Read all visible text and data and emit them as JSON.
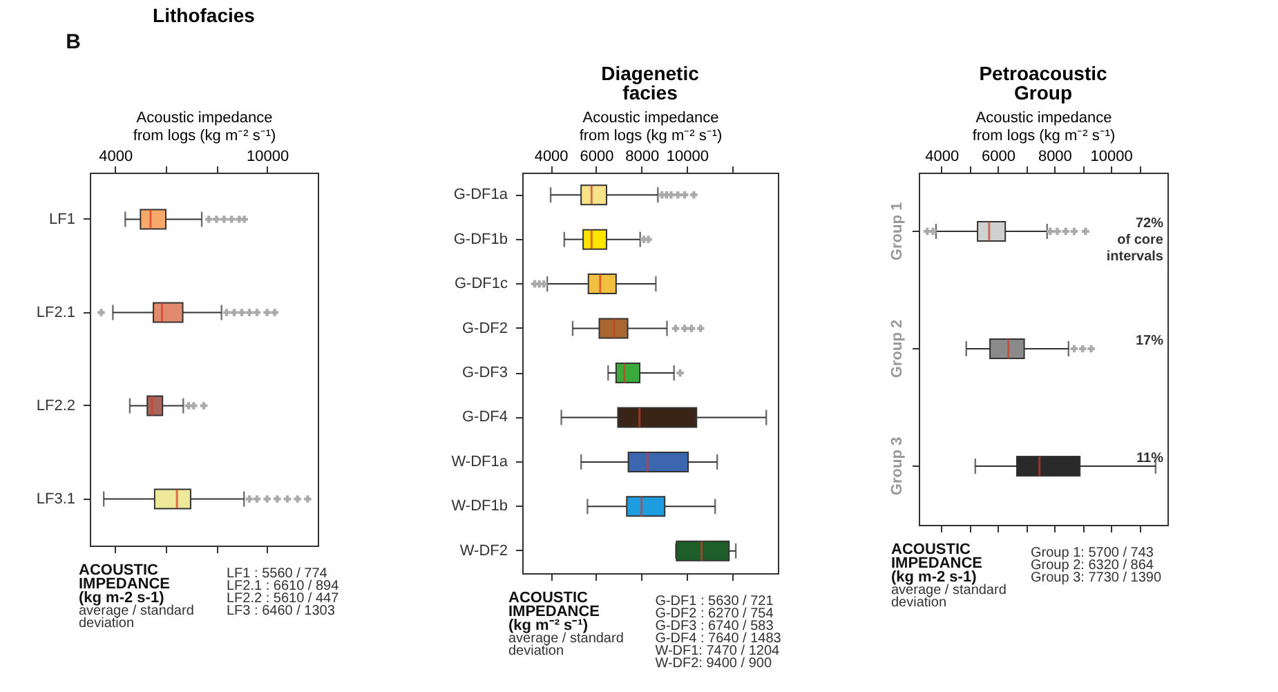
{
  "chart_data": [
    {
      "type": "box",
      "orientation": "horizontal",
      "title": "Lithofacies",
      "xlabel": "Acoustic impedance\nfrom logs (kg m⁻² s⁻¹)",
      "categories": [
        "LF1",
        "LF2.1",
        "LF2.2",
        "LF3.1"
      ],
      "colors": [
        "#f7a96b",
        "#e08a6e",
        "#a9655a",
        "#eee89a"
      ],
      "boxes": [
        {
          "low": 4400,
          "q1": 5000,
          "median": 5400,
          "q3": 6000,
          "high": 7420,
          "outliers": [
            7700,
            8000,
            8300,
            8600,
            8900,
            9100
          ]
        },
        {
          "low": 3910,
          "q1": 5510,
          "median": 5850,
          "q3": 6670,
          "high": 8200,
          "outliers": [
            3450,
            8400,
            8700,
            9000,
            9300,
            9600,
            10000,
            10300
          ]
        },
        {
          "low": 4580,
          "q1": 5270,
          "median": 5450,
          "q3": 5870,
          "high": 6690,
          "outliers": [
            6900,
            7100,
            7500
          ]
        },
        {
          "low": 3550,
          "q1": 5560,
          "median": 6440,
          "q3": 6980,
          "high": 9090,
          "outliers": [
            9300,
            9600,
            10000,
            10400,
            10800,
            11200,
            11600
          ]
        }
      ],
      "xlim": [
        3000,
        12000
      ],
      "xticks": [
        4000,
        {
          "value": 6000,
          "label": null
        },
        {
          "value": 8000,
          "label": null
        },
        10000
      ],
      "annotations": [
        "B",
        "ACOUSTIC\nIMPEDANCE\n(kg m-2 s-1)",
        "average / standard\ndeviation",
        "LF1 :   5560  /  774\nLF2.1 : 6610  /  894\nLF2.2 : 5610  /  447\nLF3 :   6460  /  1303"
      ]
    },
    {
      "type": "box",
      "orientation": "horizontal",
      "title": "Diagenetic\nfacies",
      "xlabel": "Acoustic impedance\nfrom logs (kg m⁻² s⁻¹)",
      "categories": [
        "G-DF1a",
        "G-DF1b",
        "G-DF1c",
        "G-DF2",
        "G-DF3",
        "G-DF4",
        "W-DF1a",
        "W-DF1b",
        "W-DF2"
      ],
      "colors": [
        "#f6e38a",
        "#ffe600",
        "#f2c040",
        "#a9662e",
        "#3aaa3a",
        "#3a2418",
        "#3d66b0",
        "#1e9ee0",
        "#1e5e2a"
      ],
      "boxes": [
        {
          "low": 4000,
          "q1": 5340,
          "median": 5800,
          "q3": 6460,
          "high": 8720,
          "outliers": [
            8900,
            9100,
            9300,
            9600,
            9900,
            10300
          ]
        },
        {
          "low": 4600,
          "q1": 5430,
          "median": 5800,
          "q3": 6460,
          "high": 7940,
          "outliers": [
            8100,
            8300
          ]
        },
        {
          "low": 3850,
          "q1": 5660,
          "median": 6180,
          "q3": 6880,
          "high": 8630,
          "outliers": [
            3300,
            3500,
            3700
          ]
        },
        {
          "low": 4970,
          "q1": 6140,
          "median": 6790,
          "q3": 7390,
          "high": 9120,
          "outliers": [
            9500,
            9900,
            10200,
            10600
          ]
        },
        {
          "low": 6530,
          "q1": 6880,
          "median": 7240,
          "q3": 7920,
          "high": 9430,
          "outliers": [
            9700
          ]
        },
        {
          "low": 4470,
          "q1": 6960,
          "median": 7910,
          "q3": 10420,
          "high": 13490
        },
        {
          "low": 5340,
          "q1": 7420,
          "median": 8260,
          "q3": 10050,
          "high": 11330
        },
        {
          "low": 5620,
          "q1": 7350,
          "median": 8000,
          "q3": 9020,
          "high": 11240
        },
        {
          "low": 9510,
          "q1": 9540,
          "median": 10640,
          "q3": 11850,
          "high": 12150
        }
      ],
      "xlim": [
        2750,
        14000
      ],
      "xticks": [
        4000,
        6000,
        8000,
        10000,
        {
          "value": 12000,
          "label": null
        }
      ],
      "annotations": [
        "ACOUSTIC\nIMPEDANCE\n(kg m⁻² s⁻¹)",
        "average / standard\ndeviation",
        "G-DF1 : 5630  /  721\nG-DF2 : 6270  /  754\nG-DF3 : 6740  /  583\nG-DF4 : 7640  /  1483\nW-DF1: 7470  /  1204\nW-DF2: 9400  /  900"
      ]
    },
    {
      "type": "box",
      "orientation": "horizontal",
      "title": "Petroacoustic\nGroup",
      "xlabel": "Acoustic impedance\nfrom logs (kg m⁻² s⁻¹)",
      "categories": [
        "Group 1",
        "Group 2",
        "Group 3"
      ],
      "colors": [
        "#d0d0d0",
        "#8a8a8a",
        "#2a2a2a"
      ],
      "boxes": [
        {
          "low": 3810,
          "q1": 5280,
          "median": 5690,
          "q3": 6260,
          "high": 7740,
          "outliers": [
            3500,
            3700,
            7850,
            8100,
            8400,
            8700,
            9100
          ]
        },
        {
          "low": 4880,
          "q1": 5720,
          "median": 6370,
          "q3": 6930,
          "high": 8500,
          "outliers": [
            8700,
            9000,
            9300
          ]
        },
        {
          "low": 5200,
          "q1": 6670,
          "median": 7470,
          "q3": 8900,
          "high": 11580
        }
      ],
      "xlim": [
        3200,
        12000
      ],
      "xticks": [
        4000,
        {
          "value": 5000,
          "label": null
        },
        6000,
        {
          "value": 7000,
          "label": null
        },
        8000,
        {
          "value": 9000,
          "label": null
        },
        10000,
        {
          "value": 11000,
          "label": null
        }
      ],
      "annotations": [
        "72%\nof core\nintervals",
        "17%",
        "11%",
        "ACOUSTIC\nIMPEDANCE\n(kg m-2 s-1)",
        "average / standard\ndeviation",
        "Group 1: 5700  /  743\nGroup 2: 6320  /  864\nGroup 3: 7730  /  1390"
      ]
    }
  ]
}
